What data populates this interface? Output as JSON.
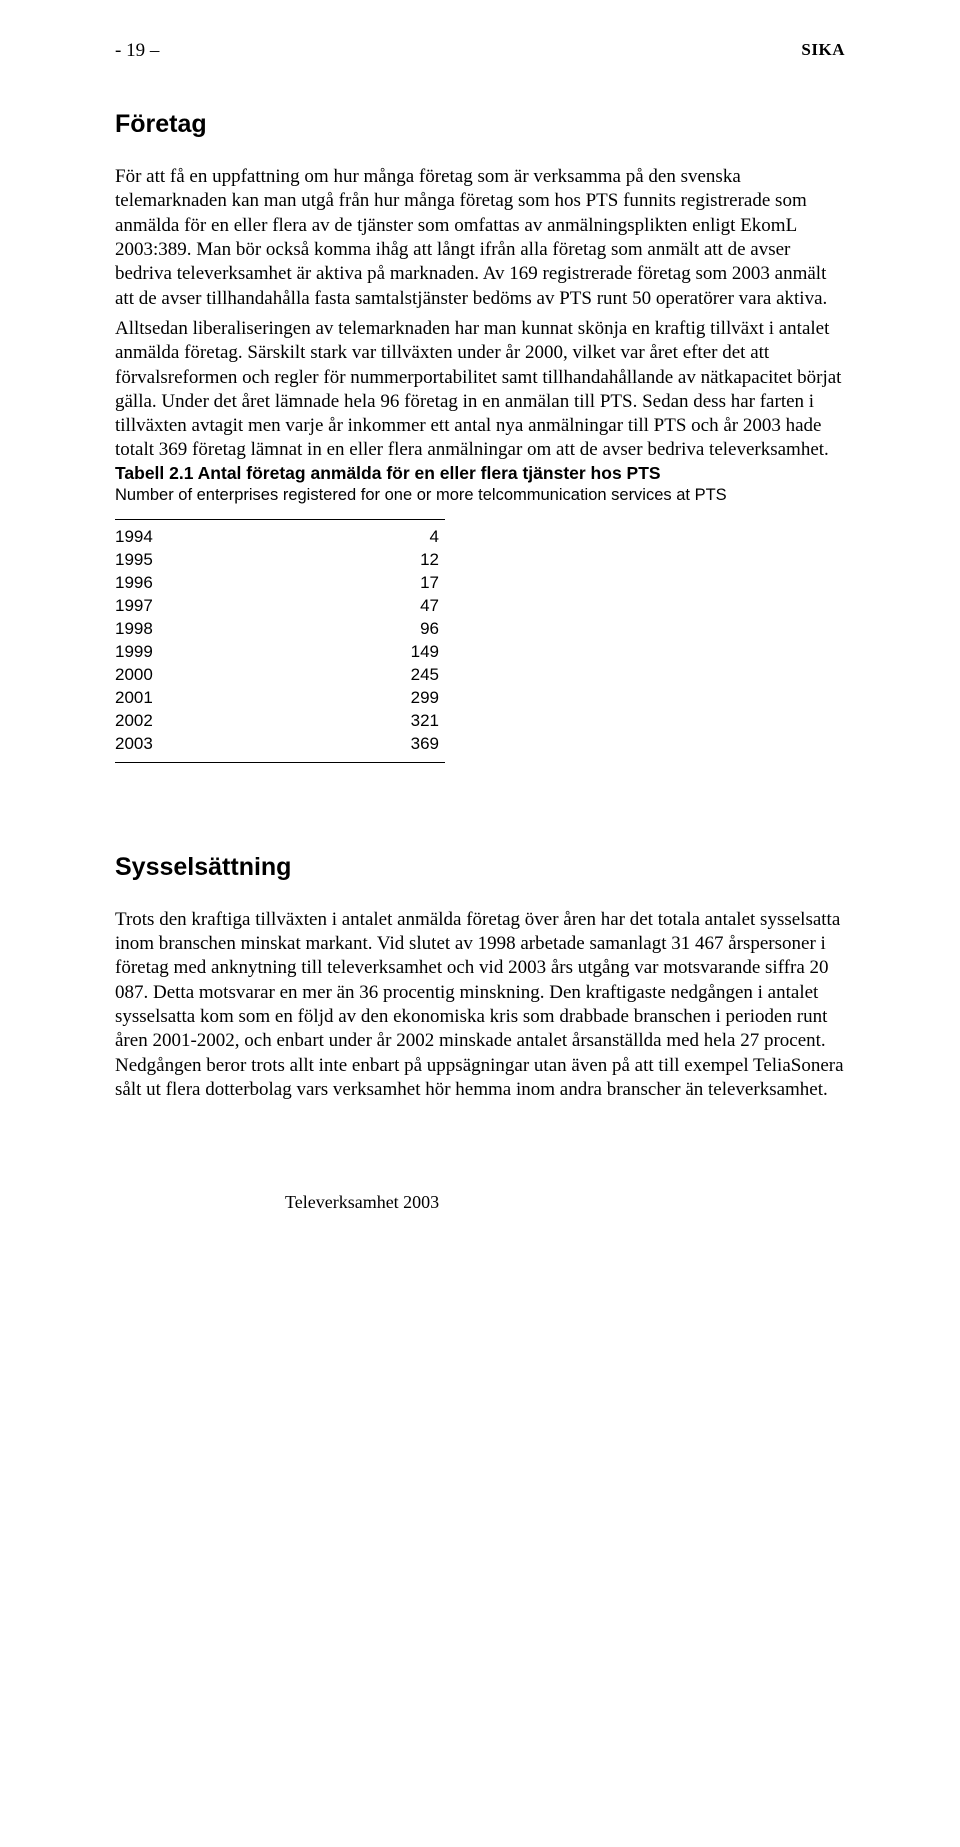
{
  "header": {
    "page_num": "- 19 –",
    "sika": "SIKA"
  },
  "section1": {
    "title": "Företag",
    "p1": "För att få en uppfattning om hur många företag som är verksamma på den svenska telemarknaden kan man utgå från hur många företag som hos PTS funnits registrerade som anmälda för en eller flera av de tjänster som omfattas av anmälningsplikten enligt EkomL 2003:389. Man bör också komma ihåg att långt ifrån alla företag som anmält att de avser bedriva televerksamhet är aktiva på marknaden. Av 169 registrerade företag som 2003 anmält att de avser tillhandahålla fasta samtalstjänster bedöms av PTS runt 50 operatörer vara aktiva.",
    "p2": "Alltsedan liberaliseringen av telemarknaden har man kunnat skönja en kraftig tillväxt i antalet anmälda företag. Särskilt stark var tillväxten under år 2000, vilket var året efter det att förvalsreformen och regler för nummerportabilitet samt tillhandahållande av nätkapacitet börjat gälla. Under det året lämnade hela 96 företag in en anmälan till PTS. Sedan dess har farten i tillväxten avtagit men varje år inkommer ett antal nya anmälningar till PTS och år 2003 hade totalt 369 företag lämnat in en eller flera anmälningar om att de avser bedriva televerksamhet."
  },
  "table": {
    "title": "Tabell 2.1 Antal företag anmälda för en eller flera tjänster hos PTS",
    "subtitle": "Number of enterprises registered for one or more telcommunication services at PTS",
    "rows": [
      {
        "year": "1994",
        "value": "4"
      },
      {
        "year": "1995",
        "value": "12"
      },
      {
        "year": "1996",
        "value": "17"
      },
      {
        "year": "1997",
        "value": "47"
      },
      {
        "year": "1998",
        "value": "96"
      },
      {
        "year": "1999",
        "value": "149"
      },
      {
        "year": "2000",
        "value": "245"
      },
      {
        "year": "2001",
        "value": "299"
      },
      {
        "year": "2002",
        "value": "321"
      },
      {
        "year": "2003",
        "value": "369"
      }
    ]
  },
  "section2": {
    "title": "Sysselsättning",
    "p1": "Trots den kraftiga tillväxten i antalet anmälda företag över åren har det totala antalet sysselsatta inom branschen minskat markant. Vid slutet av 1998 arbetade samanlagt 31 467 årspersoner i företag med anknytning till televerksamhet och vid 2003 års utgång var motsvarande siffra 20 087. Detta motsvarar en mer än 36 procentig minskning. Den kraftigaste nedgången i antalet sysselsatta kom som en följd av den ekonomiska kris som drabbade branschen i perioden runt åren 2001-2002, och enbart under år 2002 minskade antalet årsanställda med hela 27 procent. Nedgången beror trots allt inte enbart på uppsägningar utan även på att till exempel TeliaSonera sålt ut flera dotterbolag vars verksamhet hör hemma inom andra branscher än televerksamhet."
  },
  "footer": "Televerksamhet 2003"
}
